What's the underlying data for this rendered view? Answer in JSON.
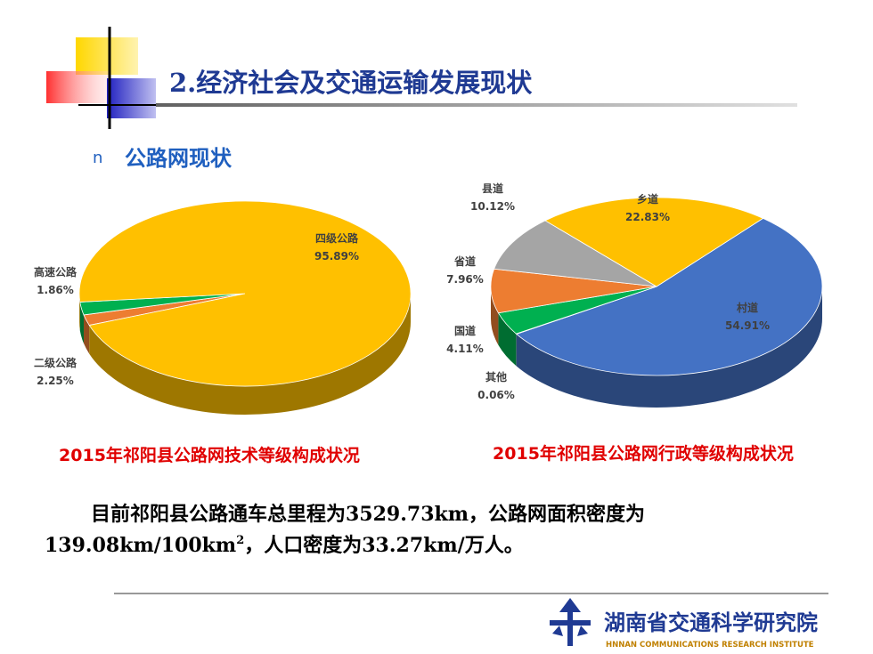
{
  "header": {
    "title": "2.经济社会及交通运输发展现状",
    "bullet": "n",
    "subtitle": "公路网现状"
  },
  "chart_data": [
    {
      "type": "pie3d",
      "title": "2015年祁阳县公路网技术等级构成状况",
      "start_angle": 160,
      "categories": [
        "高速公路",
        "二级公路",
        "四级公路"
      ],
      "values": [
        1.86,
        2.25,
        95.89
      ],
      "value_labels": [
        "1.86%",
        "2.25%",
        "95.89%"
      ],
      "colors": [
        "#ED7D31",
        "#00B050",
        "#FFC000"
      ]
    },
    {
      "type": "pie3d",
      "title": "2015年祁阳县公路网行政等级构成状况",
      "start_angle": -50,
      "categories": [
        "村道",
        "其他",
        "国道",
        "省道",
        "县道",
        "乡道"
      ],
      "values": [
        54.91,
        0.06,
        4.11,
        7.96,
        10.12,
        22.83
      ],
      "value_labels": [
        "54.91%",
        "0.06%",
        "4.11%",
        "7.96%",
        "10.12%",
        "22.83%"
      ],
      "colors": [
        "#4472C4",
        "#264478",
        "#00B050",
        "#ED7D31",
        "#A5A5A5",
        "#FFC000"
      ]
    }
  ],
  "body": {
    "line1": "目前祁阳县公路通车总里程为3529.73km，公路网面积密度为",
    "line2a": "139.08km/100km",
    "sup": "2",
    "line2b": "，人口密度为33.27km/万人。"
  },
  "footer": {
    "name": "湖南省交通科学研究院",
    "english": "HNNAN COMMUNICATIONS RESEARCH INSTITUTE"
  }
}
